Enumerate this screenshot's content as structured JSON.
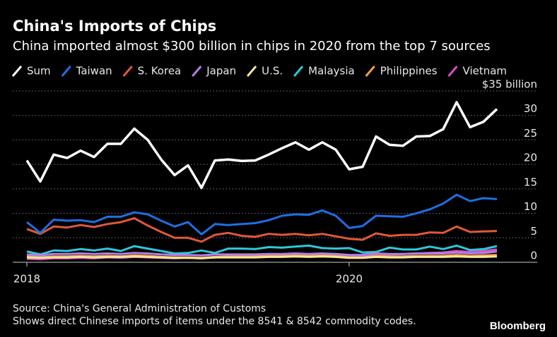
{
  "chart_data": {
    "type": "line",
    "title": "China's Imports of Chips",
    "subtitle": "China imported almost $300 billion in chips in 2020 from the top 7 sources",
    "categories": [
      "2018",
      null,
      null,
      null,
      null,
      null,
      null,
      null,
      null,
      null,
      null,
      null,
      null,
      null,
      null,
      null,
      null,
      null,
      null,
      null,
      null,
      null,
      null,
      null,
      "2020",
      null,
      null,
      null,
      null,
      null,
      null,
      null,
      null,
      null,
      null,
      null
    ],
    "series": [
      {
        "name": "Sum",
        "color": "#ffffff",
        "values": [
          20.8,
          16.5,
          22,
          21.3,
          22.8,
          21.5,
          24.2,
          24.2,
          27.3,
          25,
          21,
          17.8,
          19.8,
          15.2,
          20.8,
          21,
          20.7,
          20.8,
          22,
          23.3,
          24.5,
          23,
          24.5,
          23,
          19,
          19.5,
          25.7,
          24,
          23.8,
          25.7,
          25.8,
          27.2,
          32.7,
          27.6,
          28.7,
          31.3
        ]
      },
      {
        "name": "Taiwan",
        "color": "#1f6fe0",
        "values": [
          8.2,
          6,
          8.7,
          8.5,
          8.6,
          8.2,
          9.3,
          9.3,
          10.2,
          9.8,
          8.5,
          7.3,
          8.2,
          5.7,
          7.8,
          7.6,
          7.8,
          8,
          8.6,
          9.5,
          9.8,
          9.7,
          10.6,
          9.5,
          7,
          7.4,
          9.5,
          9.4,
          9.3,
          10,
          10.8,
          12,
          13.8,
          12.5,
          13.1,
          12.9
        ]
      },
      {
        "name": "S. Korea",
        "color": "#e0583a",
        "values": [
          6.8,
          5.8,
          7.3,
          7.1,
          7.6,
          7.2,
          7.8,
          8.2,
          9,
          7.5,
          6.2,
          5,
          5,
          4.2,
          5.6,
          6,
          5.4,
          5.2,
          5.8,
          5.6,
          5.8,
          5.5,
          5.8,
          5.3,
          4.8,
          4.6,
          5.9,
          5.4,
          5.6,
          5.6,
          6.1,
          6,
          7.3,
          6.2,
          6.3,
          6.4
        ]
      },
      {
        "name": "Japan",
        "color": "#b37ee8",
        "values": [
          1.6,
          1.4,
          1.7,
          1.7,
          1.8,
          1.7,
          1.8,
          1.7,
          1.9,
          1.8,
          1.6,
          1.5,
          1.5,
          1.4,
          1.6,
          1.6,
          1.6,
          1.6,
          1.7,
          1.7,
          1.8,
          1.7,
          1.8,
          1.7,
          1.5,
          1.5,
          1.8,
          1.7,
          1.7,
          1.8,
          1.8,
          1.8,
          2,
          1.8,
          1.9,
          2.2
        ]
      },
      {
        "name": "U.S.",
        "color": "#f5e69a",
        "values": [
          1,
          0.9,
          1,
          1,
          1.1,
          1,
          1.1,
          1.1,
          1.2,
          1.1,
          1,
          0.9,
          0.9,
          0.8,
          1,
          1,
          1,
          1,
          1.1,
          1.1,
          1.2,
          1.1,
          1.2,
          1.1,
          0.9,
          0.9,
          1.1,
          1,
          1,
          1.1,
          1.1,
          1.1,
          1.2,
          1.1,
          1.1,
          1.2
        ]
      },
      {
        "name": "Malaysia",
        "color": "#2ec8d8",
        "values": [
          2.2,
          1.6,
          2.4,
          2.3,
          2.7,
          2.4,
          2.8,
          2.3,
          3.3,
          2.8,
          2.3,
          1.8,
          1.9,
          2.4,
          1.9,
          2.8,
          2.8,
          2.7,
          3.1,
          3,
          3.2,
          3.4,
          2.9,
          2.8,
          2.9,
          2,
          2.1,
          3,
          2.6,
          2.6,
          3.2,
          2.7,
          3.4,
          2.5,
          2.7,
          3.3
        ]
      },
      {
        "name": "Philippines",
        "color": "#f0a048",
        "values": [
          1.2,
          1,
          1.2,
          1.2,
          1.3,
          1.2,
          1.3,
          1.2,
          1.4,
          1.3,
          1.1,
          1,
          1,
          0.9,
          1.1,
          1.2,
          1.2,
          1.2,
          1.3,
          1.3,
          1.4,
          1.3,
          1.4,
          1.3,
          1,
          1,
          1.3,
          1.2,
          1.2,
          1.3,
          1.3,
          1.3,
          1.5,
          1.3,
          1.4,
          1.5
        ]
      },
      {
        "name": "Vietnam",
        "color": "#d84fc4",
        "values": [
          0.7,
          0.6,
          0.8,
          0.8,
          0.9,
          0.8,
          1,
          0.9,
          1.1,
          1,
          0.9,
          0.8,
          0.9,
          0.8,
          1,
          1.1,
          1.1,
          1.2,
          1.3,
          1.4,
          1.5,
          1.5,
          1.6,
          1.5,
          1.3,
          1.3,
          1.7,
          1.6,
          1.7,
          1.8,
          1.9,
          2,
          2.3,
          2.1,
          2.3,
          2.6
        ]
      }
    ],
    "ylim": [
      0,
      35
    ],
    "yticks": [
      0,
      5,
      10,
      15,
      20,
      25,
      30,
      {
        "value": 35,
        "label": "$35 billion"
      }
    ],
    "grid": true,
    "source": "Source: China's General Administration of Customs",
    "note": "Shows direct Chinese imports of items under the 8541 & 8542 commodity codes.",
    "brand": "Bloomberg"
  }
}
